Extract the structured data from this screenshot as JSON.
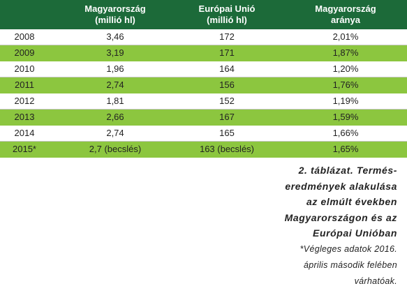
{
  "table": {
    "header": [
      [
        "Magyarország",
        "(millió hl)"
      ],
      [
        "Európai Unió",
        "(millió hl)"
      ],
      [
        "Magyarország",
        "aránya"
      ]
    ],
    "rows": [
      [
        "2008",
        "3,46",
        "172",
        "2,01%"
      ],
      [
        "2009",
        "3,19",
        "171",
        "1,87%"
      ],
      [
        "2010",
        "1,96",
        "164",
        "1,20%"
      ],
      [
        "2011",
        "2,74",
        "156",
        "1,76%"
      ],
      [
        "2012",
        "1,81",
        "152",
        "1,19%"
      ],
      [
        "2013",
        "2,66",
        "167",
        "1,59%"
      ],
      [
        "2014",
        "2,74",
        "165",
        "1,66%"
      ],
      [
        "2015*",
        "2,7 (becslés)",
        "163 (becslés)",
        "1,65%"
      ]
    ]
  },
  "caption": {
    "title_lines": [
      "2. táblázat. Termés-",
      "eredmények alakulása",
      "az elmúlt években",
      "Magyarországon és az",
      "Európai Unióban"
    ],
    "note_lines": [
      "*Végleges adatok 2016.",
      "április második felében",
      "várhatóak."
    ]
  }
}
